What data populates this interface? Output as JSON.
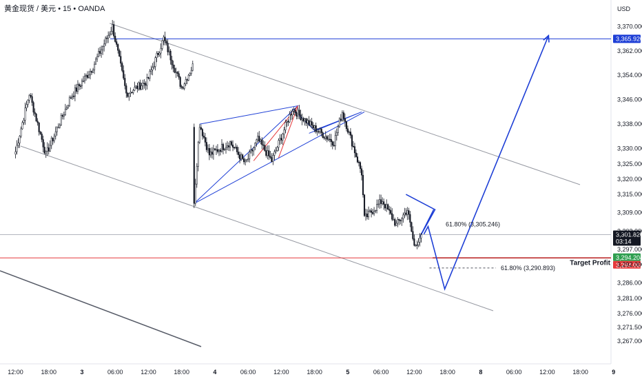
{
  "header": {
    "symbol": "黄金现货 / 美元 • 15 • OANDA",
    "currency": "USD"
  },
  "colors": {
    "up": "#ffffff",
    "down": "#131722",
    "wick": "#131722",
    "channel": "#9598a1",
    "blue": "#1e3fd6",
    "red": "#e5393b",
    "target_line": "#b71c1c",
    "green": "#2e9e4f",
    "price_tag": "#131722"
  },
  "chart_data": {
    "type": "candlestick",
    "title": "",
    "ylim": [
      3262,
      3373
    ],
    "y_ticks": [
      "3,370.000",
      "3,362.000",
      "3,354.000",
      "3,346.000",
      "3,338.000",
      "3,330.000",
      "3,325.000",
      "3,320.000",
      "3,315.000",
      "3,309.000",
      "3,303.000",
      "3,297.000",
      "3,292.000",
      "3,286.000",
      "3,281.000",
      "3,276.000",
      "3,271.500",
      "3,267.000"
    ],
    "x_ticks": [
      {
        "label": "12:00",
        "bold": false,
        "bar": 0
      },
      {
        "label": "18:00",
        "bold": false,
        "bar": 24
      },
      {
        "label": "3",
        "bold": true,
        "bar": 48
      },
      {
        "label": "06:00",
        "bold": false,
        "bar": 72
      },
      {
        "label": "12:00",
        "bold": false,
        "bar": 96
      },
      {
        "label": "18:00",
        "bold": false,
        "bar": 120
      },
      {
        "label": "4",
        "bold": true,
        "bar": 144
      },
      {
        "label": "06:00",
        "bold": false,
        "bar": 168
      },
      {
        "label": "12:00",
        "bold": false,
        "bar": 192
      },
      {
        "label": "18:00",
        "bold": false,
        "bar": 216
      },
      {
        "label": "5",
        "bold": true,
        "bar": 240
      },
      {
        "label": "06:00",
        "bold": false,
        "bar": 264
      },
      {
        "label": "12:00",
        "bold": false,
        "bar": 288
      },
      {
        "label": "18:00",
        "bold": false,
        "bar": 312
      },
      {
        "label": "8",
        "bold": true,
        "bar": 336
      },
      {
        "label": "06:00",
        "bold": false,
        "bar": 360
      },
      {
        "label": "12:00",
        "bold": false,
        "bar": 384
      },
      {
        "label": "18:00",
        "bold": false,
        "bar": 408
      },
      {
        "label": "9",
        "bold": true,
        "bar": 432
      }
    ],
    "key_points": [
      {
        "bar": 0,
        "price": 3329
      },
      {
        "bar": 10,
        "price": 3348
      },
      {
        "bar": 22,
        "price": 3328
      },
      {
        "bar": 40,
        "price": 3347
      },
      {
        "bar": 55,
        "price": 3356
      },
      {
        "bar": 70,
        "price": 3370
      },
      {
        "bar": 80,
        "price": 3348
      },
      {
        "bar": 95,
        "price": 3352
      },
      {
        "bar": 107,
        "price": 3366
      },
      {
        "bar": 120,
        "price": 3350
      },
      {
        "bar": 128,
        "price": 3357
      },
      {
        "bar": 129,
        "price": 3313
      },
      {
        "bar": 133,
        "price": 3338
      },
      {
        "bar": 140,
        "price": 3328
      },
      {
        "bar": 155,
        "price": 3332
      },
      {
        "bar": 166,
        "price": 3325
      },
      {
        "bar": 175,
        "price": 3333
      },
      {
        "bar": 185,
        "price": 3326
      },
      {
        "bar": 200,
        "price": 3343
      },
      {
        "bar": 215,
        "price": 3337
      },
      {
        "bar": 230,
        "price": 3332
      },
      {
        "bar": 236,
        "price": 3342
      },
      {
        "bar": 250,
        "price": 3322
      },
      {
        "bar": 252,
        "price": 3307
      },
      {
        "bar": 265,
        "price": 3313
      },
      {
        "bar": 275,
        "price": 3305
      },
      {
        "bar": 283,
        "price": 3310
      },
      {
        "bar": 288,
        "price": 3298
      },
      {
        "bar": 293,
        "price": 3301.8
      }
    ],
    "current_price": "3,301.820",
    "countdown": "03:14",
    "resistance_level": "3,365.920",
    "target_profit_level": "3,294.204",
    "target_profit_alt": "3,294.061",
    "fib_label_upper": "61.80% (3,305.246)",
    "fib_label_lower": "61.80% (3,290.893)",
    "target_profit_label": "Target Profit",
    "projection": [
      {
        "bar": 295,
        "price": 3302
      },
      {
        "bar": 298,
        "price": 3304.5
      },
      {
        "bar": 310,
        "price": 3284
      },
      {
        "bar": 385,
        "price": 3367
      }
    ]
  }
}
